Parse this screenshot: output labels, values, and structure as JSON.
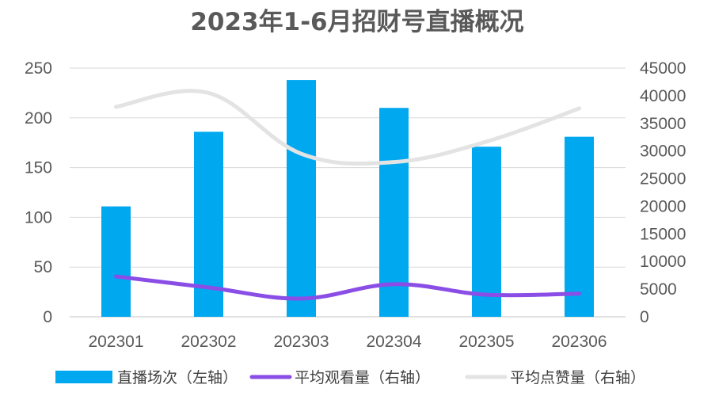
{
  "chart_data": {
    "type": "bar",
    "title": "2023年1-6月招财号直播概况",
    "categories": [
      "202301",
      "202302",
      "202303",
      "202304",
      "202305",
      "202306"
    ],
    "series": [
      {
        "name": "直播场次（左轴）",
        "type": "bar",
        "axis": "left",
        "color": "#00a8f0",
        "values": [
          111,
          186,
          238,
          210,
          171,
          181
        ]
      },
      {
        "name": "平均观看量（右轴）",
        "type": "line",
        "axis": "right",
        "color": "#8a4ee6",
        "values": [
          7300,
          5300,
          3300,
          5900,
          4000,
          4200
        ]
      },
      {
        "name": "平均点赞量（右轴）",
        "type": "line",
        "axis": "right",
        "color": "#e3e3e3",
        "values": [
          38000,
          40500,
          29500,
          28000,
          31700,
          37700
        ]
      }
    ],
    "y_left": {
      "min": 0,
      "max": 250,
      "ticks": [
        "0",
        "50",
        "100",
        "150",
        "200",
        "250"
      ]
    },
    "y_right": {
      "min": 0,
      "max": 45000,
      "ticks": [
        "0",
        "5000",
        "10000",
        "15000",
        "20000",
        "25000",
        "30000",
        "35000",
        "40000",
        "45000"
      ]
    },
    "grid": true,
    "legend_position": "bottom"
  }
}
